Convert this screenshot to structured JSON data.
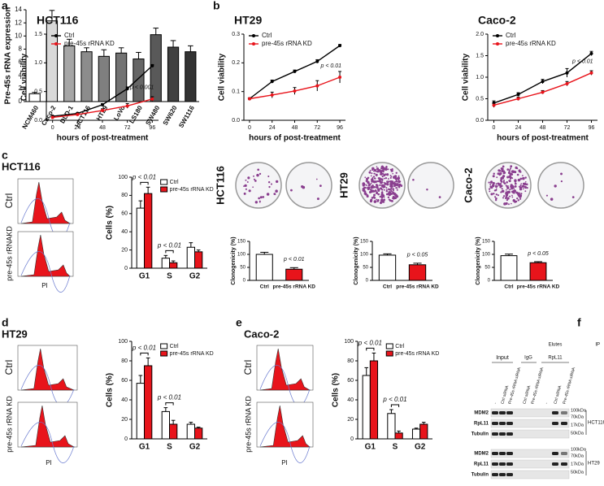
{
  "chart_data": [
    {
      "type": "bar",
      "ylabel": "Pre-45s rRNA expression",
      "categories": [
        "NCM460",
        "Caco-2",
        "DLD-1",
        "HCT116",
        "HT29",
        "LoVo",
        "LS180",
        "SW480",
        "SW620",
        "SW1116"
      ],
      "values": [
        1.2,
        12.3,
        8.5,
        7.6,
        6.9,
        7.4,
        6.5,
        10.2,
        8.3,
        7.6
      ],
      "errors": [
        0.2,
        1.6,
        1.0,
        0.6,
        1.0,
        0.8,
        1.0,
        1.0,
        1.0,
        0.9
      ],
      "colors": [
        "#ffffff",
        "#d9d9d9",
        "#a6a6a6",
        "#8c8c8c",
        "#7f7f7f",
        "#737373",
        "#666666",
        "#595959",
        "#404040",
        "#333333"
      ],
      "ylim": [
        0,
        14
      ],
      "yticks": [
        0,
        2,
        4,
        6,
        8,
        10,
        12,
        14
      ]
    },
    {
      "type": "line",
      "title": "HCT116",
      "xlabel": "hours of post-treatment",
      "ylabel": "Cell viability",
      "x": [
        0,
        24,
        48,
        72,
        96
      ],
      "xlim": [
        -6,
        102
      ],
      "xticks": [
        0,
        24,
        48,
        72,
        96
      ],
      "series": [
        {
          "name": "Ctrl",
          "color": "#000000",
          "values": [
            0.07,
            0.12,
            0.27,
            0.55,
            0.95
          ],
          "errors": [
            0.01,
            0.01,
            0.02,
            0.03,
            0.02
          ]
        },
        {
          "name": "pre-45s rRNA KD",
          "color": "#e8141b",
          "values": [
            0.05,
            0.1,
            0.17,
            0.25,
            0.37
          ],
          "errors": [
            0.01,
            0.02,
            0.03,
            0.04,
            0.04
          ]
        }
      ],
      "ylim": [
        0,
        1.5
      ],
      "yticks": [
        {
          "value": 0,
          "label": "0.0"
        },
        0.5,
        {
          "value": 1,
          "label": "1.0"
        },
        1.5
      ],
      "annotation": "p < 0.001"
    },
    {
      "type": "line",
      "title": "HT29",
      "xlabel": "hours of post-treatment",
      "ylabel": "Cell viability",
      "x": [
        0,
        24,
        48,
        72,
        96
      ],
      "xlim": [
        -6,
        102
      ],
      "xticks": [
        0,
        24,
        48,
        72,
        96
      ],
      "series": [
        {
          "name": "Ctrl",
          "color": "#000000",
          "values": [
            0.075,
            0.135,
            0.17,
            0.205,
            0.26
          ],
          "errors": [
            0.003,
            0.005,
            0.005,
            0.006,
            0.004
          ]
        },
        {
          "name": "pre-45s rRNA KD",
          "color": "#e8141b",
          "values": [
            0.075,
            0.088,
            0.102,
            0.12,
            0.15
          ],
          "errors": [
            0.003,
            0.01,
            0.012,
            0.018,
            0.02
          ]
        }
      ],
      "ylim": [
        0,
        0.3
      ],
      "yticks": [
        {
          "value": 0,
          "label": "0.0"
        },
        0.1,
        0.2,
        0.3
      ],
      "annotation": "p < 0.01"
    },
    {
      "type": "line",
      "title": "Caco-2",
      "xlabel": "hours of post-treatment",
      "ylabel": "Cell viability",
      "x": [
        0,
        24,
        48,
        72,
        96
      ],
      "xlim": [
        -6,
        102
      ],
      "xticks": [
        0,
        24,
        48,
        72,
        96
      ],
      "series": [
        {
          "name": "Ctrl",
          "color": "#000000",
          "values": [
            0.4,
            0.6,
            0.9,
            1.1,
            1.55
          ],
          "errors": [
            0.05,
            0.04,
            0.05,
            0.1,
            0.05
          ]
        },
        {
          "name": "pre-45s rRNA KD",
          "color": "#e8141b",
          "values": [
            0.35,
            0.5,
            0.65,
            0.85,
            1.1
          ],
          "errors": [
            0.05,
            0.04,
            0.04,
            0.05,
            0.05
          ]
        }
      ],
      "ylim": [
        0,
        2
      ],
      "yticks": [
        {
          "value": 0,
          "label": "0.0"
        },
        0.5,
        {
          "value": 1,
          "label": "1.0"
        },
        1.5,
        {
          "value": 2,
          "label": "2.0"
        }
      ],
      "annotation": "p < 0.01"
    },
    {
      "type": "grouped_bar",
      "ylabel": "Cells (%)",
      "categories": [
        "G1",
        "S",
        "G2"
      ],
      "series": [
        {
          "name": "Ctrl",
          "color": "#ffffff",
          "values": [
            66,
            11,
            23
          ],
          "errors": [
            8,
            3,
            5
          ]
        },
        {
          "name": "pre-45s rRNA KD",
          "color": "#e8141b",
          "values": [
            82,
            6,
            18
          ],
          "errors": [
            7,
            2,
            2
          ]
        }
      ],
      "ylim": [
        0,
        100
      ],
      "yticks": [
        0,
        20,
        40,
        60,
        80,
        100
      ],
      "annotations": [
        "p < 0.01",
        "p < 0.01"
      ]
    },
    {
      "type": "bar",
      "ylabel": "Clonogenicity (%)",
      "categories": [
        "Ctrl",
        "pre-45s rRNA KD"
      ],
      "values": [
        100,
        43
      ],
      "errors": [
        8,
        6
      ],
      "colors": [
        "#ffffff",
        "#e8141b"
      ],
      "ylim": [
        0,
        150
      ],
      "yticks": [
        0,
        50,
        100,
        150
      ],
      "annotation": "p < 0.01"
    },
    {
      "type": "bar",
      "ylabel": "Clonogenicity (%)",
      "categories": [
        "Ctrl",
        "pre-45s rRNA KD"
      ],
      "values": [
        97,
        60
      ],
      "errors": [
        5,
        6
      ],
      "colors": [
        "#ffffff",
        "#e8141b"
      ],
      "ylim": [
        0,
        150
      ],
      "yticks": [
        0,
        50,
        100,
        150
      ],
      "annotation": "p < 0.05"
    },
    {
      "type": "bar",
      "ylabel": "Clonogenicity (%)",
      "categories": [
        "Ctrl",
        "pre-45s rRNA KD"
      ],
      "values": [
        95,
        68
      ],
      "errors": [
        6,
        4
      ],
      "colors": [
        "#ffffff",
        "#e8141b"
      ],
      "ylim": [
        0,
        150
      ],
      "yticks": [
        0,
        50,
        100,
        150
      ],
      "annotation": "p < 0.05"
    },
    {
      "type": "grouped_bar",
      "ylabel": "Cells (%)",
      "categories": [
        "G1",
        "S",
        "G2"
      ],
      "series": [
        {
          "name": "Ctrl",
          "color": "#ffffff",
          "values": [
            57,
            28,
            15
          ],
          "errors": [
            8,
            4,
            2
          ]
        },
        {
          "name": "pre-45s rRNA KD",
          "color": "#e8141b",
          "values": [
            75,
            15,
            11
          ],
          "errors": [
            8,
            4,
            1
          ]
        }
      ],
      "ylim": [
        0,
        100
      ],
      "yticks": [
        0,
        20,
        40,
        60,
        80,
        100
      ],
      "annotations": [
        "p < 0.01",
        "p < 0.01"
      ]
    },
    {
      "type": "grouped_bar",
      "ylabel": "Cells (%)",
      "categories": [
        "G1",
        "S",
        "G2"
      ],
      "series": [
        {
          "name": "Ctrl",
          "color": "#ffffff",
          "values": [
            65,
            26,
            10
          ],
          "errors": [
            8,
            4,
            1
          ]
        },
        {
          "name": "pre-45s rRNA KD",
          "color": "#e8141b",
          "values": [
            80,
            6,
            15
          ],
          "errors": [
            8,
            2,
            2
          ]
        }
      ],
      "ylim": [
        0,
        100
      ],
      "yticks": [
        0,
        20,
        40,
        60,
        80,
        100
      ],
      "annotations": [
        "p < 0.01",
        "p < 0.01"
      ]
    }
  ],
  "figure": {
    "panel_labels": [
      "a",
      "b",
      "c",
      "d",
      "e",
      "f"
    ],
    "flow": [
      {
        "title": "HCT116",
        "rows": [
          "Ctrl",
          "pre-45s rRNAKD"
        ],
        "axis": "PI"
      },
      {
        "title": "HT29",
        "rows": [
          "Ctrl",
          "pre-45s rRNA KD"
        ],
        "axis": "PI"
      },
      {
        "title": "Caco-2",
        "rows": [
          "Ctrl",
          "pre-45s rRNA KD"
        ],
        "axis": "PI"
      }
    ],
    "colony_labels": [
      "HCT116",
      "HT29",
      "Caco-2"
    ],
    "blot": {
      "input": "Input",
      "elutes": "Elutes",
      "igg": "IgG",
      "rpl11": "RpL11",
      "ip": "IP",
      "lanes": [
        "-",
        "Ctrl siRNA",
        "Pre-45s rRNA siRNA",
        "Ctrl siRNA",
        "Pre-45s rRNA siRNA",
        "-",
        "Ctrl siRNA",
        "Pre-45s rRNA siRNA"
      ],
      "proteins": [
        "MDM2",
        "RpL11",
        "Tubulin",
        "MDM2",
        "RpL11",
        "Tubulin"
      ],
      "markers": [
        "100kDa",
        "70kDa",
        "17kDa",
        "50kDa",
        "100kDa",
        "70kDa",
        "17kDa",
        "50kDa"
      ],
      "cell_lines": [
        "HCT116",
        "HT29"
      ]
    }
  }
}
